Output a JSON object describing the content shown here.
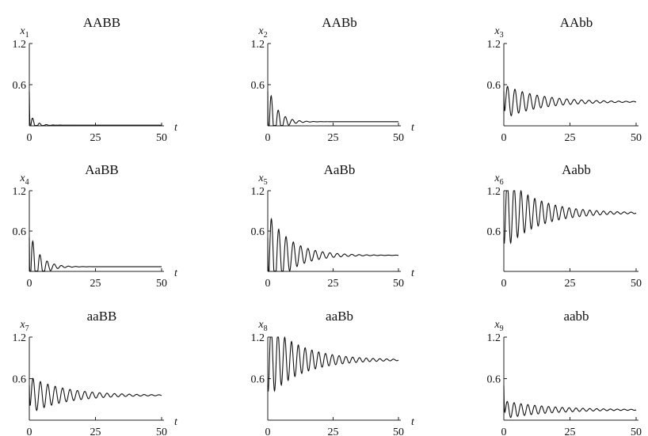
{
  "chart_data": [
    {
      "type": "line",
      "title": "AABB",
      "ylabel": "x",
      "ylabel_sub": "1",
      "xlabel": "t",
      "xlim": [
        0,
        50
      ],
      "ylim": [
        0,
        1.2
      ],
      "xticks": [
        "0",
        "25",
        "50"
      ],
      "yticks": [
        "0.6",
        "1.2"
      ],
      "x": [
        0,
        1,
        2.5,
        4,
        6,
        8,
        10,
        15,
        20,
        25,
        30,
        40,
        50
      ],
      "series": [
        {
          "values": [
            0.5,
            0.02,
            0.2,
            0.01,
            0.05,
            0.01,
            0.02,
            0.01,
            0.01,
            0.01,
            0.01,
            0.01,
            0.01
          ]
        }
      ],
      "model": {
        "x0": 0.5,
        "eq": 0.01,
        "amp": 0.19,
        "decay": 0.5,
        "period": 2.6,
        "dip": 0.0
      }
    },
    {
      "type": "line",
      "title": "AABb",
      "ylabel": "x",
      "ylabel_sub": "2",
      "xlabel": "t",
      "xlim": [
        0,
        50
      ],
      "ylim": [
        0,
        1.2
      ],
      "xticks": [
        "0",
        "25",
        "50"
      ],
      "yticks": [
        "0.6",
        "1.2"
      ],
      "x": [
        0,
        1,
        2.5,
        4,
        5,
        6,
        8,
        10,
        15,
        20,
        25,
        30,
        40,
        50
      ],
      "series": [
        {
          "values": [
            0.5,
            0.02,
            0.62,
            0.05,
            0.28,
            0.03,
            0.15,
            0.04,
            0.07,
            0.06,
            0.06,
            0.06,
            0.06,
            0.06
          ]
        }
      ],
      "model": {
        "x0": 0.5,
        "eq": 0.06,
        "amp": 0.56,
        "decay": 0.3,
        "period": 2.7,
        "dip": 0.0
      }
    },
    {
      "type": "line",
      "title": "AAbb",
      "ylabel": "x",
      "ylabel_sub": "3",
      "xlabel": "t",
      "xlim": [
        0,
        50
      ],
      "ylim": [
        0,
        1.2
      ],
      "xticks": [
        "0",
        "25",
        "50"
      ],
      "yticks": [
        "0.6",
        "1.2"
      ],
      "x": [
        0,
        1,
        2.5,
        4,
        5.5,
        10,
        15,
        20,
        25,
        30,
        40,
        50
      ],
      "series": [
        {
          "values": [
            0.5,
            0.16,
            0.62,
            0.2,
            0.57,
            0.46,
            0.4,
            0.37,
            0.35,
            0.35,
            0.35,
            0.35
          ]
        }
      ],
      "model": {
        "x0": 0.5,
        "eq": 0.35,
        "amp": 0.25,
        "decay": 0.075,
        "period": 2.8,
        "dip": 0.2
      }
    },
    {
      "type": "line",
      "title": "AaBB",
      "ylabel": "x",
      "ylabel_sub": "4",
      "xlabel": "t",
      "xlim": [
        0,
        50
      ],
      "ylim": [
        0,
        1.2
      ],
      "xticks": [
        "0",
        "25",
        "50"
      ],
      "yticks": [
        "0.6",
        "1.2"
      ],
      "x": [
        0,
        1,
        2.5,
        4,
        5,
        6,
        8,
        10,
        15,
        20,
        25,
        30,
        40,
        50
      ],
      "series": [
        {
          "values": [
            0.5,
            0.02,
            0.62,
            0.04,
            0.28,
            0.03,
            0.16,
            0.05,
            0.08,
            0.07,
            0.07,
            0.07,
            0.07,
            0.07
          ]
        }
      ],
      "model": {
        "x0": 0.5,
        "eq": 0.07,
        "amp": 0.55,
        "decay": 0.28,
        "period": 2.7,
        "dip": 0.0
      }
    },
    {
      "type": "line",
      "title": "AaBb",
      "ylabel": "x",
      "ylabel_sub": "5",
      "xlabel": "t",
      "xlim": [
        0,
        50
      ],
      "ylim": [
        0,
        1.2
      ],
      "xticks": [
        "0",
        "25",
        "50"
      ],
      "yticks": [
        "0.6",
        "1.2"
      ],
      "x": [
        0,
        1,
        2.5,
        4,
        5.5,
        10,
        15,
        20,
        25,
        30,
        40,
        50
      ],
      "series": [
        {
          "values": [
            0.5,
            0.02,
            0.88,
            0.04,
            0.6,
            0.4,
            0.3,
            0.26,
            0.24,
            0.24,
            0.24,
            0.24
          ]
        }
      ],
      "model": {
        "x0": 0.5,
        "eq": 0.24,
        "amp": 0.64,
        "decay": 0.12,
        "period": 2.8,
        "dip": 0.0
      }
    },
    {
      "type": "line",
      "title": "Aabb",
      "ylabel": "x",
      "ylabel_sub": "6",
      "xlabel": "t",
      "xlim": [
        0,
        50
      ],
      "ylim": [
        0,
        1.2
      ],
      "xticks": [
        "0",
        "25",
        "50"
      ],
      "yticks": [
        "0.6",
        "1.2"
      ],
      "x": [
        0,
        1,
        2.5,
        5,
        7.5,
        10,
        15,
        20,
        25,
        30,
        40,
        50
      ],
      "series": [
        {
          "values": [
            0.5,
            0.2,
            1.05,
            1.19,
            1.18,
            1.1,
            1.0,
            0.93,
            0.9,
            0.88,
            0.87,
            0.87
          ]
        }
      ],
      "model": {
        "x0": 0.5,
        "eq": 0.87,
        "amp": 0.55,
        "decay": 0.08,
        "period": 2.6,
        "dip": 0.3
      }
    },
    {
      "type": "line",
      "title": "aaBB",
      "ylabel": "x",
      "ylabel_sub": "7",
      "xlabel": "t",
      "xlim": [
        0,
        50
      ],
      "ylim": [
        0,
        1.2
      ],
      "xticks": [
        "0",
        "25",
        "50"
      ],
      "yticks": [
        "0.6",
        "1.2"
      ],
      "x": [
        0,
        1,
        2.5,
        4,
        5.5,
        10,
        15,
        20,
        25,
        30,
        40,
        50
      ],
      "series": [
        {
          "values": [
            0.5,
            0.17,
            0.63,
            0.2,
            0.57,
            0.46,
            0.4,
            0.37,
            0.36,
            0.36,
            0.36,
            0.36
          ]
        }
      ],
      "model": {
        "x0": 0.5,
        "eq": 0.36,
        "amp": 0.27,
        "decay": 0.075,
        "period": 2.8,
        "dip": 0.2
      }
    },
    {
      "type": "line",
      "title": "aaBb",
      "ylabel": "x",
      "ylabel_sub": "8",
      "xlabel": "t",
      "xlim": [
        0,
        50
      ],
      "ylim": [
        0,
        1.2
      ],
      "xticks": [
        "0",
        "25",
        "50"
      ],
      "yticks": [
        "0.6",
        "1.2"
      ],
      "x": [
        0,
        1,
        2.5,
        5,
        7.5,
        10,
        15,
        20,
        25,
        30,
        40,
        50
      ],
      "series": [
        {
          "values": [
            0.5,
            0.22,
            1.05,
            1.19,
            1.18,
            1.1,
            1.0,
            0.93,
            0.9,
            0.88,
            0.87,
            0.87
          ]
        }
      ],
      "model": {
        "x0": 0.5,
        "eq": 0.87,
        "amp": 0.55,
        "decay": 0.08,
        "period": 2.6,
        "dip": 0.3
      }
    },
    {
      "type": "line",
      "title": "aabb",
      "ylabel": "x",
      "ylabel_sub": "9",
      "xlabel": "t",
      "xlim": [
        0,
        50
      ],
      "ylim": [
        0,
        1.2
      ],
      "xticks": [
        "0",
        "25",
        "50"
      ],
      "yticks": [
        "0.6",
        "1.2"
      ],
      "x": [
        0,
        1,
        2.5,
        5,
        7.5,
        10,
        15,
        20,
        25,
        30,
        40,
        50
      ],
      "series": [
        {
          "values": [
            0.5,
            0.02,
            0.2,
            0.26,
            0.25,
            0.23,
            0.19,
            0.16,
            0.15,
            0.15,
            0.15,
            0.15
          ]
        }
      ],
      "model": {
        "x0": 0.5,
        "eq": 0.15,
        "amp": 0.13,
        "decay": 0.06,
        "period": 2.6,
        "dip": 0.0
      }
    }
  ]
}
